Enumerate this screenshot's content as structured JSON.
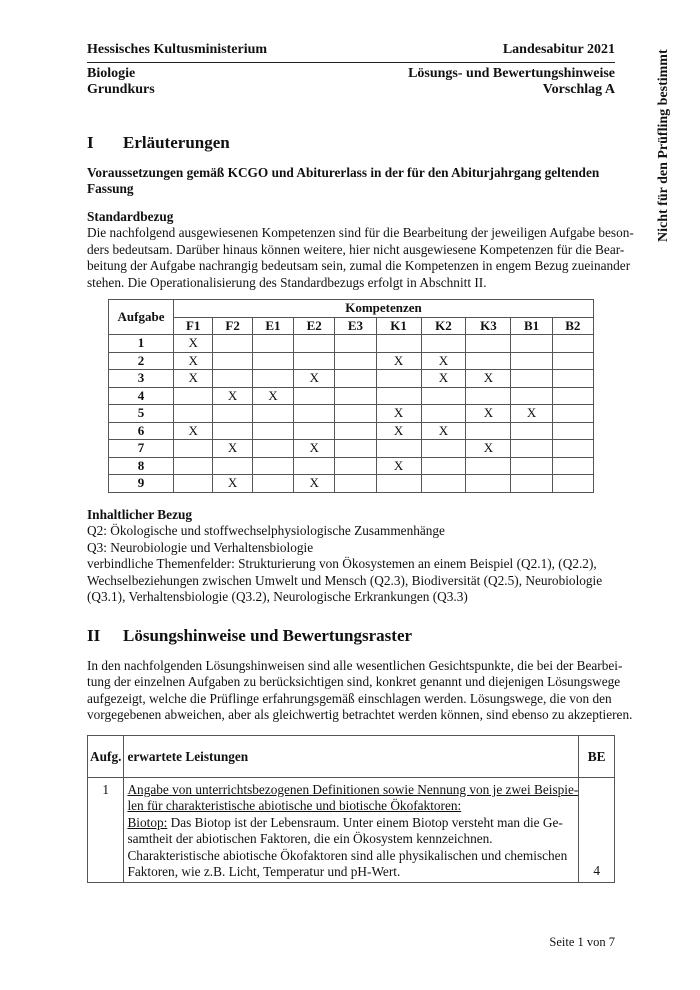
{
  "header": {
    "org": "Hessisches Kultusministerium",
    "exam": "Landesabitur 2021",
    "subject": "Biologie",
    "course": "Grundkurs",
    "doc_type": "Lösungs- und Bewertungshinweise",
    "proposal": "Vorschlag A"
  },
  "side_note": "Nicht für den Prüfling bestimmt",
  "section1": {
    "num": "I",
    "title": "Erläuterungen",
    "prereq_lines": [
      "Voraussetzungen gemäß KCGO und Abiturerlass in der für den Abiturjahrgang geltenden",
      "Fassung"
    ],
    "standard_title": "Standardbezug",
    "standard_lines": [
      "Die nachfolgend ausgewiesenen Kompetenzen sind für die Bearbeitung der jeweiligen Aufgabe beson-",
      "ders bedeutsam. Darüber hinaus können weitere, hier nicht ausgewiesene Kompetenzen für die Bear-",
      "beitung der Aufgabe nachrangig bedeutsam sein, zumal die Kompetenzen in engem Bezug zueinander",
      "stehen. Die Operationalisierung des Standardbezugs erfolgt in Abschnitt II."
    ],
    "table": {
      "row_header": "Aufgabe",
      "group_header": "Kompetenzen",
      "columns": [
        "F1",
        "F2",
        "E1",
        "E2",
        "E3",
        "K1",
        "K2",
        "K3",
        "B1",
        "B2"
      ],
      "rows": [
        {
          "task": "1",
          "marks": [
            "X",
            "",
            "",
            "",
            "",
            "",
            "",
            "",
            "",
            ""
          ]
        },
        {
          "task": "2",
          "marks": [
            "X",
            "",
            "",
            "",
            "",
            "X",
            "X",
            "",
            "",
            ""
          ]
        },
        {
          "task": "3",
          "marks": [
            "X",
            "",
            "",
            "X",
            "",
            "",
            "X",
            "X",
            "",
            ""
          ]
        },
        {
          "task": "4",
          "marks": [
            "",
            "X",
            "X",
            "",
            "",
            "",
            "",
            "",
            "",
            ""
          ]
        },
        {
          "task": "5",
          "marks": [
            "",
            "",
            "",
            "",
            "",
            "X",
            "",
            "X",
            "X",
            ""
          ]
        },
        {
          "task": "6",
          "marks": [
            "X",
            "",
            "",
            "",
            "",
            "X",
            "X",
            "",
            "",
            ""
          ]
        },
        {
          "task": "7",
          "marks": [
            "",
            "X",
            "",
            "X",
            "",
            "",
            "",
            "X",
            "",
            ""
          ]
        },
        {
          "task": "8",
          "marks": [
            "",
            "",
            "",
            "",
            "",
            "X",
            "",
            "",
            "",
            ""
          ]
        },
        {
          "task": "9",
          "marks": [
            "",
            "X",
            "",
            "X",
            "",
            "",
            "",
            "",
            "",
            ""
          ]
        }
      ]
    },
    "content_title": "Inhaltlicher Bezug",
    "content_lines": [
      "Q2: Ökologische und stoffwechselphysiologische Zusammenhänge",
      "Q3: Neurobiologie und Verhaltensbiologie",
      "verbindliche Themenfelder: Strukturierung von Ökosystemen an einem Beispiel (Q2.1), (Q2.2),",
      "Wechselbeziehungen zwischen Umwelt und Mensch (Q2.3), Biodiversität (Q2.5), Neurobiologie",
      "(Q3.1), Verhaltensbiologie (Q3.2), Neurologische Erkrankungen (Q3.3)"
    ]
  },
  "section2": {
    "num": "II",
    "title": "Lösungshinweise und Bewertungsraster",
    "intro_lines": [
      "In den nachfolgenden Lösungshinweisen sind alle wesentlichen Gesichtspunkte, die bei der Bearbei-",
      "tung der einzelnen Aufgaben zu berücksichtigen sind, konkret genannt und diejenigen Lösungswege",
      "aufgezeigt, welche die Prüflinge erfahrungsgemäß einschlagen werden. Lösungswege, die von den",
      "vorgegebenen abweichen, aber als gleichwertig betrachtet werden können, sind ebenso zu akzeptieren."
    ],
    "table": {
      "headers": {
        "task": "Aufg.",
        "expected": "erwartete Leistungen",
        "points": "BE"
      },
      "row": {
        "task": "1",
        "heading_lines": [
          "Angabe von unterrichtsbezogenen Definitionen sowie Nennung von je zwei Beispie-",
          "len für charakteristische abiotische und biotische Ökofaktoren:"
        ],
        "term": "Biotop:",
        "first_line_rest": " Das Biotop ist der Lebensraum. Unter einem Biotop versteht man die Ge-",
        "body_lines": [
          "samtheit der abiotischen Faktoren, die ein Ökosystem kennzeichnen.",
          "Charakteristische abiotische Ökofaktoren sind alle physikalischen und chemischen",
          "Faktoren, wie z.B. Licht, Temperatur und pH-Wert."
        ],
        "points": "4"
      }
    }
  },
  "footer": {
    "page": "Seite 1 von 7"
  }
}
